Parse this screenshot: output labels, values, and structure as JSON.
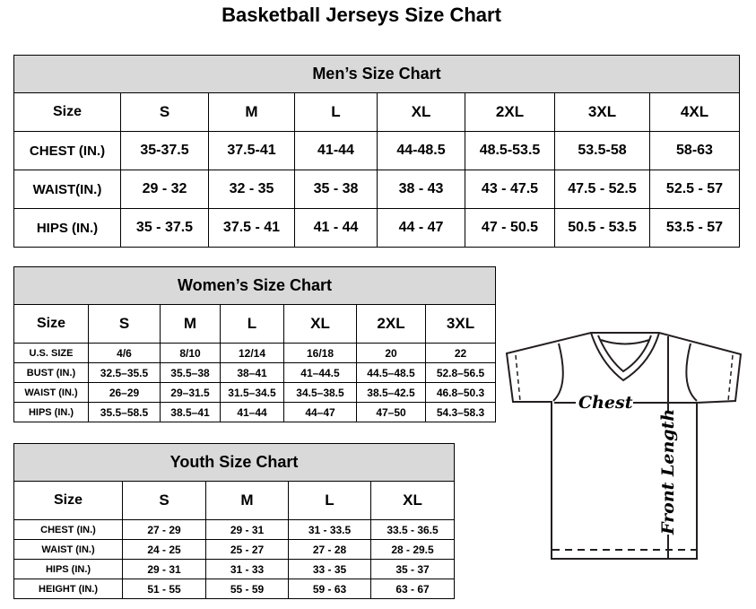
{
  "title": "Basketball Jerseys Size Chart",
  "men": {
    "heading": "Men’s Size Chart",
    "header": [
      "Size",
      "S",
      "M",
      "L",
      "XL",
      "2XL",
      "3XL",
      "4XL"
    ],
    "rows": [
      [
        "CHEST (IN.)",
        "35-37.5",
        "37.5-41",
        "41-44",
        "44-48.5",
        "48.5-53.5",
        "53.5-58",
        "58-63"
      ],
      [
        "WAIST(IN.)",
        "29 - 32",
        "32 - 35",
        "35 - 38",
        "38 - 43",
        "43 - 47.5",
        "47.5 - 52.5",
        "52.5 - 57"
      ],
      [
        "HIPS (IN.)",
        "35 - 37.5",
        "37.5 - 41",
        "41 - 44",
        "44 - 47",
        "47 - 50.5",
        "50.5 - 53.5",
        "53.5 - 57"
      ]
    ]
  },
  "women": {
    "heading": "Women’s Size Chart",
    "header": [
      "Size",
      "S",
      "M",
      "L",
      "XL",
      "2XL",
      "3XL"
    ],
    "rows": [
      [
        "U.S. SIZE",
        "4/6",
        "8/10",
        "12/14",
        "16/18",
        "20",
        "22"
      ],
      [
        "BUST (IN.)",
        "32.5–35.5",
        "35.5–38",
        "38–41",
        "41–44.5",
        "44.5–48.5",
        "52.8–56.5"
      ],
      [
        "WAIST (IN.)",
        "26–29",
        "29–31.5",
        "31.5–34.5",
        "34.5–38.5",
        "38.5–42.5",
        "46.8–50.3"
      ],
      [
        "HIPS (IN.)",
        "35.5–58.5",
        "38.5–41",
        "41–44",
        "44–47",
        "47–50",
        "54.3–58.3"
      ]
    ]
  },
  "youth": {
    "heading": "Youth Size Chart",
    "header": [
      "Size",
      "S",
      "M",
      "L",
      "XL"
    ],
    "rows": [
      [
        "CHEST (IN.)",
        "27 - 29",
        "29 - 31",
        "31 - 33.5",
        "33.5 - 36.5"
      ],
      [
        "WAIST (IN.)",
        "24 - 25",
        "25 - 27",
        "27 - 28",
        "28 - 29.5"
      ],
      [
        "HIPS (IN.)",
        "29 - 31",
        "31 - 33",
        "33 - 35",
        "35 - 37"
      ],
      [
        "HEIGHT (IN.)",
        "51 - 55",
        "55 - 59",
        "59 - 63",
        "63 - 67"
      ]
    ]
  },
  "diagram": {
    "chest_label": "Chest",
    "length_label": "Front Length"
  },
  "colors": {
    "header_bg": "#d9d9d9",
    "line": "#231f20"
  }
}
